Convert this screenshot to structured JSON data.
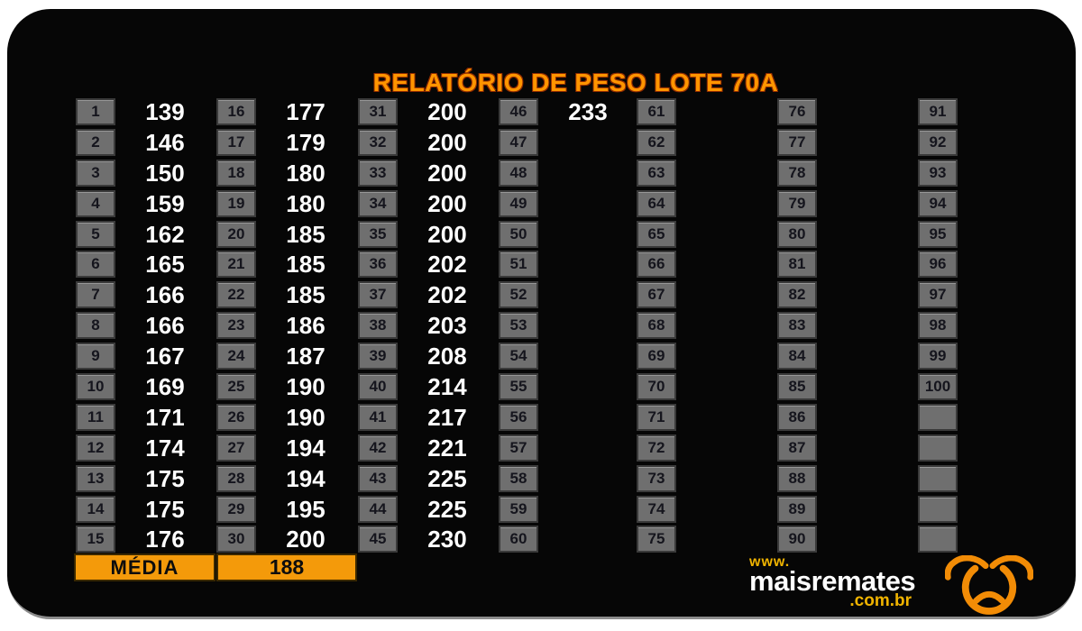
{
  "title": "RELATÓRIO DE PESO LOTE 70A",
  "summary": {
    "label": "MÉDIA",
    "value": "188"
  },
  "logo": {
    "www": "www.",
    "name": "maisremates",
    "domain": ".com.br",
    "icon": "bull-head-icon"
  },
  "colors": {
    "page_bg": "#FFFFFF",
    "card_bg": "#060606",
    "title_orange": "#FF9500",
    "title_outline": "#8F2B00",
    "cell_bg": "#6F6F6F",
    "cell_border": "#3A3A3A",
    "cell_number_text": "#15151D",
    "value_text": "#FFFFFF",
    "media_bg": "#F49A0A",
    "media_text": "#0D0D0D",
    "logo_yellow": "#F0B400",
    "logo_white": "#FFFFFF",
    "bull_orange": "#F28C06",
    "card_bottom_edge": "#8C8C8C"
  },
  "columns": [
    {
      "name": "tags-1-15",
      "cells": [
        {
          "n": "1",
          "v": "139"
        },
        {
          "n": "2",
          "v": "146"
        },
        {
          "n": "3",
          "v": "150"
        },
        {
          "n": "4",
          "v": "159"
        },
        {
          "n": "5",
          "v": "162"
        },
        {
          "n": "6",
          "v": "165"
        },
        {
          "n": "7",
          "v": "166"
        },
        {
          "n": "8",
          "v": "166"
        },
        {
          "n": "9",
          "v": "167"
        },
        {
          "n": "10",
          "v": "169"
        },
        {
          "n": "11",
          "v": "171"
        },
        {
          "n": "12",
          "v": "174"
        },
        {
          "n": "13",
          "v": "175"
        },
        {
          "n": "14",
          "v": "175"
        },
        {
          "n": "15",
          "v": "176"
        }
      ]
    },
    {
      "name": "tags-16-30",
      "cells": [
        {
          "n": "16",
          "v": "177"
        },
        {
          "n": "17",
          "v": "179"
        },
        {
          "n": "18",
          "v": "180"
        },
        {
          "n": "19",
          "v": "180"
        },
        {
          "n": "20",
          "v": "185"
        },
        {
          "n": "21",
          "v": "185"
        },
        {
          "n": "22",
          "v": "185"
        },
        {
          "n": "23",
          "v": "186"
        },
        {
          "n": "24",
          "v": "187"
        },
        {
          "n": "25",
          "v": "190"
        },
        {
          "n": "26",
          "v": "190"
        },
        {
          "n": "27",
          "v": "194"
        },
        {
          "n": "28",
          "v": "194"
        },
        {
          "n": "29",
          "v": "195"
        },
        {
          "n": "30",
          "v": "200"
        }
      ]
    },
    {
      "name": "tags-31-45",
      "cells": [
        {
          "n": "31",
          "v": "200"
        },
        {
          "n": "32",
          "v": "200"
        },
        {
          "n": "33",
          "v": "200"
        },
        {
          "n": "34",
          "v": "200"
        },
        {
          "n": "35",
          "v": "200"
        },
        {
          "n": "36",
          "v": "202"
        },
        {
          "n": "37",
          "v": "202"
        },
        {
          "n": "38",
          "v": "203"
        },
        {
          "n": "39",
          "v": "208"
        },
        {
          "n": "40",
          "v": "214"
        },
        {
          "n": "41",
          "v": "217"
        },
        {
          "n": "42",
          "v": "221"
        },
        {
          "n": "43",
          "v": "225"
        },
        {
          "n": "44",
          "v": "225"
        },
        {
          "n": "45",
          "v": "230"
        }
      ]
    },
    {
      "name": "tags-46-60",
      "cells": [
        {
          "n": "46",
          "v": "233"
        },
        {
          "n": "47",
          "v": ""
        },
        {
          "n": "48",
          "v": ""
        },
        {
          "n": "49",
          "v": ""
        },
        {
          "n": "50",
          "v": ""
        },
        {
          "n": "51",
          "v": ""
        },
        {
          "n": "52",
          "v": ""
        },
        {
          "n": "53",
          "v": ""
        },
        {
          "n": "54",
          "v": ""
        },
        {
          "n": "55",
          "v": ""
        },
        {
          "n": "56",
          "v": ""
        },
        {
          "n": "57",
          "v": ""
        },
        {
          "n": "58",
          "v": ""
        },
        {
          "n": "59",
          "v": ""
        },
        {
          "n": "60",
          "v": ""
        }
      ]
    },
    {
      "name": "tags-61-75",
      "cells": [
        {
          "n": "61",
          "v": ""
        },
        {
          "n": "62",
          "v": ""
        },
        {
          "n": "63",
          "v": ""
        },
        {
          "n": "64",
          "v": ""
        },
        {
          "n": "65",
          "v": ""
        },
        {
          "n": "66",
          "v": ""
        },
        {
          "n": "67",
          "v": ""
        },
        {
          "n": "68",
          "v": ""
        },
        {
          "n": "69",
          "v": ""
        },
        {
          "n": "70",
          "v": ""
        },
        {
          "n": "71",
          "v": ""
        },
        {
          "n": "72",
          "v": ""
        },
        {
          "n": "73",
          "v": ""
        },
        {
          "n": "74",
          "v": ""
        },
        {
          "n": "75",
          "v": ""
        }
      ]
    },
    {
      "name": "tags-76-90",
      "cells": [
        {
          "n": "76",
          "v": ""
        },
        {
          "n": "77",
          "v": ""
        },
        {
          "n": "78",
          "v": ""
        },
        {
          "n": "79",
          "v": ""
        },
        {
          "n": "80",
          "v": ""
        },
        {
          "n": "81",
          "v": ""
        },
        {
          "n": "82",
          "v": ""
        },
        {
          "n": "83",
          "v": ""
        },
        {
          "n": "84",
          "v": ""
        },
        {
          "n": "85",
          "v": ""
        },
        {
          "n": "86",
          "v": ""
        },
        {
          "n": "87",
          "v": ""
        },
        {
          "n": "88",
          "v": ""
        },
        {
          "n": "89",
          "v": ""
        },
        {
          "n": "90",
          "v": ""
        }
      ]
    },
    {
      "name": "tags-91-100",
      "cells": [
        {
          "n": "91",
          "v": ""
        },
        {
          "n": "92",
          "v": ""
        },
        {
          "n": "93",
          "v": ""
        },
        {
          "n": "94",
          "v": ""
        },
        {
          "n": "95",
          "v": ""
        },
        {
          "n": "96",
          "v": ""
        },
        {
          "n": "97",
          "v": ""
        },
        {
          "n": "98",
          "v": ""
        },
        {
          "n": "99",
          "v": ""
        },
        {
          "n": "100",
          "v": ""
        },
        {
          "n": "",
          "v": ""
        },
        {
          "n": "",
          "v": ""
        },
        {
          "n": "",
          "v": ""
        },
        {
          "n": "",
          "v": ""
        },
        {
          "n": "",
          "v": ""
        }
      ]
    }
  ]
}
